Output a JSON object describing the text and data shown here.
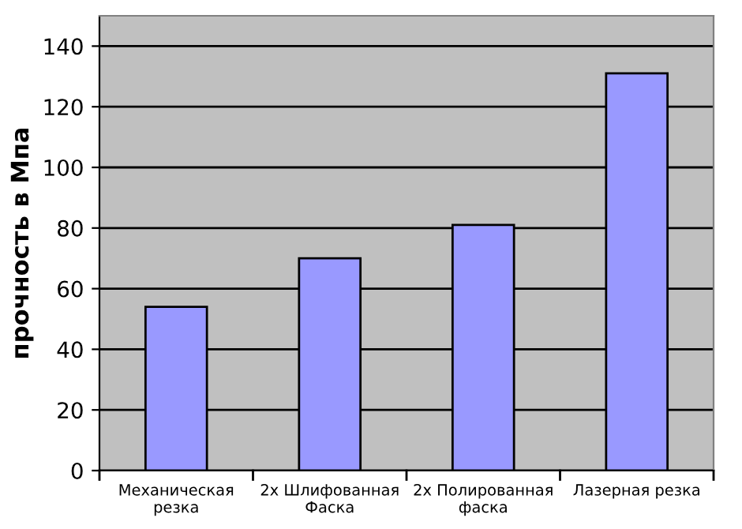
{
  "chart_data": {
    "type": "bar",
    "ylabel": "прочность в Мпа",
    "categories": [
      "Механическая\nрезка",
      "2x Шлифованная\nФаска",
      "2x Полированная\nфаска",
      "Лазерная резка"
    ],
    "values": [
      54,
      70,
      81,
      131
    ],
    "color": "#9999ff",
    "ylim": [
      0,
      150
    ],
    "yticks": [
      0,
      20,
      40,
      60,
      80,
      100,
      120,
      140
    ],
    "grid": "y",
    "legend": false
  }
}
